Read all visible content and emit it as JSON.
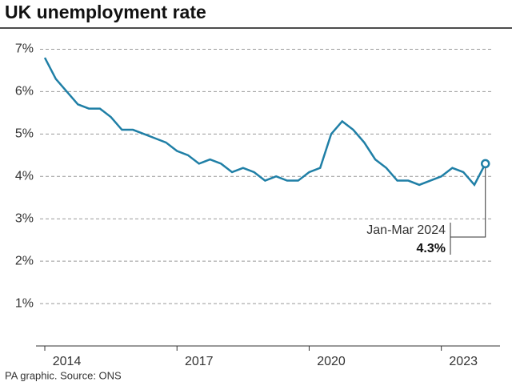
{
  "chart_data": {
    "type": "line",
    "title": "UK unemployment rate",
    "source": "PA graphic. Source: ONS",
    "x": [
      2014,
      2014.25,
      2014.5,
      2014.75,
      2015,
      2015.25,
      2015.5,
      2015.75,
      2016,
      2016.25,
      2016.5,
      2016.75,
      2017,
      2017.25,
      2017.5,
      2017.75,
      2018,
      2018.25,
      2018.5,
      2018.75,
      2019,
      2019.25,
      2019.5,
      2019.75,
      2020,
      2020.25,
      2020.5,
      2020.75,
      2021,
      2021.25,
      2021.5,
      2021.75,
      2022,
      2022.25,
      2022.5,
      2022.75,
      2023,
      2023.25,
      2023.5,
      2023.75,
      2024
    ],
    "series": [
      {
        "color": "#1f7fa6",
        "values": [
          6.8,
          6.3,
          6.0,
          5.7,
          5.6,
          5.6,
          5.4,
          5.1,
          5.1,
          5.0,
          4.9,
          4.8,
          4.6,
          4.5,
          4.3,
          4.4,
          4.3,
          4.1,
          4.2,
          4.1,
          3.9,
          4.0,
          3.9,
          3.9,
          4.1,
          4.2,
          5.0,
          5.3,
          5.1,
          4.8,
          4.4,
          4.2,
          3.9,
          3.9,
          3.8,
          3.9,
          4.0,
          4.2,
          4.1,
          3.8,
          4.3
        ],
        "value_labels": [
          null,
          null,
          null,
          null,
          null,
          null,
          null,
          null,
          null,
          null,
          null,
          null,
          null,
          null,
          null,
          null,
          null,
          null,
          null,
          null,
          null,
          null,
          null,
          null,
          null,
          null,
          null,
          null,
          null,
          null,
          null,
          null,
          null,
          null,
          null,
          null,
          null,
          null,
          null,
          null,
          "4.3%"
        ]
      }
    ],
    "annotation": "Jan-Mar 2024",
    "xlim": [
      2013.8,
      2024.15
    ],
    "xticks": [
      {
        "value": 2014,
        "label": "2014"
      },
      {
        "value": 2017,
        "label": "2017"
      },
      {
        "value": 2020,
        "label": "2020"
      },
      {
        "value": 2023,
        "label": "2023"
      }
    ],
    "ylim": [
      0,
      7.5
    ],
    "yticks": [
      {
        "value": 1,
        "label": "1%"
      },
      {
        "value": 2,
        "label": "2%"
      },
      {
        "value": 3,
        "label": "3%"
      },
      {
        "value": 4,
        "label": "4%"
      },
      {
        "value": 5,
        "label": "5%"
      },
      {
        "value": 6,
        "label": "6%"
      },
      {
        "value": 7,
        "label": "7%"
      }
    ],
    "grid": true
  }
}
